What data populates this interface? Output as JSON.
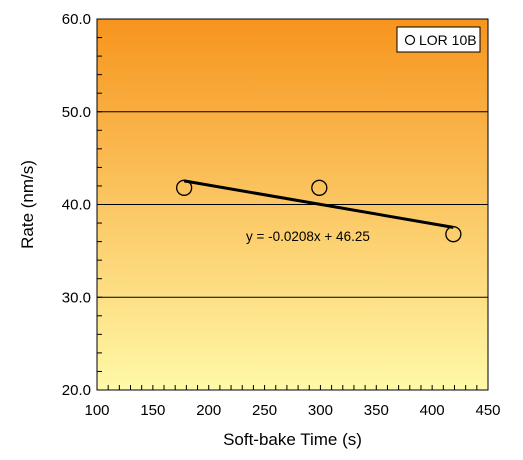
{
  "chart_data": {
    "type": "scatter",
    "title": "",
    "xlabel": "Soft-bake Time (s)",
    "ylabel": "Rate (nm/s)",
    "xlim": [
      100,
      450
    ],
    "ylim": [
      20.0,
      60.0
    ],
    "x_ticks": [
      "100",
      "150",
      "200",
      "250",
      "300",
      "350",
      "400",
      "450"
    ],
    "y_ticks": [
      "20.0",
      "30.0",
      "40.0",
      "50.0",
      "60.0"
    ],
    "grid": "horizontal major",
    "legend_position": "top-right",
    "background_gradient": {
      "top": "#F7941D",
      "bottom": "#FFF9A8"
    },
    "series": [
      {
        "name": "LOR 10B",
        "marker": "open-circle",
        "points": [
          {
            "x": 178,
            "y": 41.8
          },
          {
            "x": 299,
            "y": 41.8
          },
          {
            "x": 419,
            "y": 36.8
          }
        ]
      }
    ],
    "trendline": {
      "slope": -0.0208,
      "intercept": 46.25,
      "x_range": [
        178,
        419
      ],
      "equation_label": "y = -0.0208x + 46.25"
    }
  }
}
